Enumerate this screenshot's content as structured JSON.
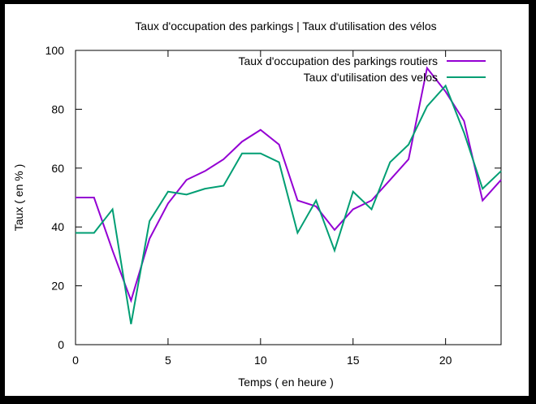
{
  "chart_data": {
    "type": "line",
    "title": "Taux d'occupation des parkings | Taux d'utilisation des vélos",
    "xlabel": "Temps ( en heure )",
    "ylabel": "Taux ( en % )",
    "xlim": [
      0,
      23
    ],
    "ylim": [
      0,
      100
    ],
    "xticks": [
      "0",
      "5",
      "10",
      "15",
      "20"
    ],
    "yticks": [
      "0",
      "20",
      "40",
      "60",
      "80",
      "100"
    ],
    "xtick_values": [
      0,
      5,
      10,
      15,
      20
    ],
    "ytick_values": [
      0,
      20,
      40,
      60,
      80,
      100
    ],
    "grid": false,
    "legend_position": "top-right",
    "x": [
      0,
      1,
      2,
      3,
      4,
      5,
      6,
      7,
      8,
      9,
      10,
      11,
      12,
      13,
      14,
      15,
      16,
      17,
      18,
      19,
      20,
      21,
      22,
      23
    ],
    "series": [
      {
        "name": "Taux d'occupation des parkings routiers",
        "color": "#9400d3",
        "values": [
          50,
          50,
          32,
          15,
          36,
          48,
          56,
          59,
          63,
          69,
          73,
          68,
          49,
          47,
          39,
          46,
          49,
          56,
          63,
          94,
          86,
          76,
          49,
          56
        ]
      },
      {
        "name": "Taux d'utilisation des velos",
        "color": "#009e73",
        "values": [
          38,
          38,
          46,
          7,
          42,
          52,
          51,
          53,
          54,
          65,
          65,
          62,
          38,
          49,
          32,
          52,
          46,
          62,
          68,
          81,
          88,
          72,
          53,
          59
        ]
      }
    ]
  }
}
